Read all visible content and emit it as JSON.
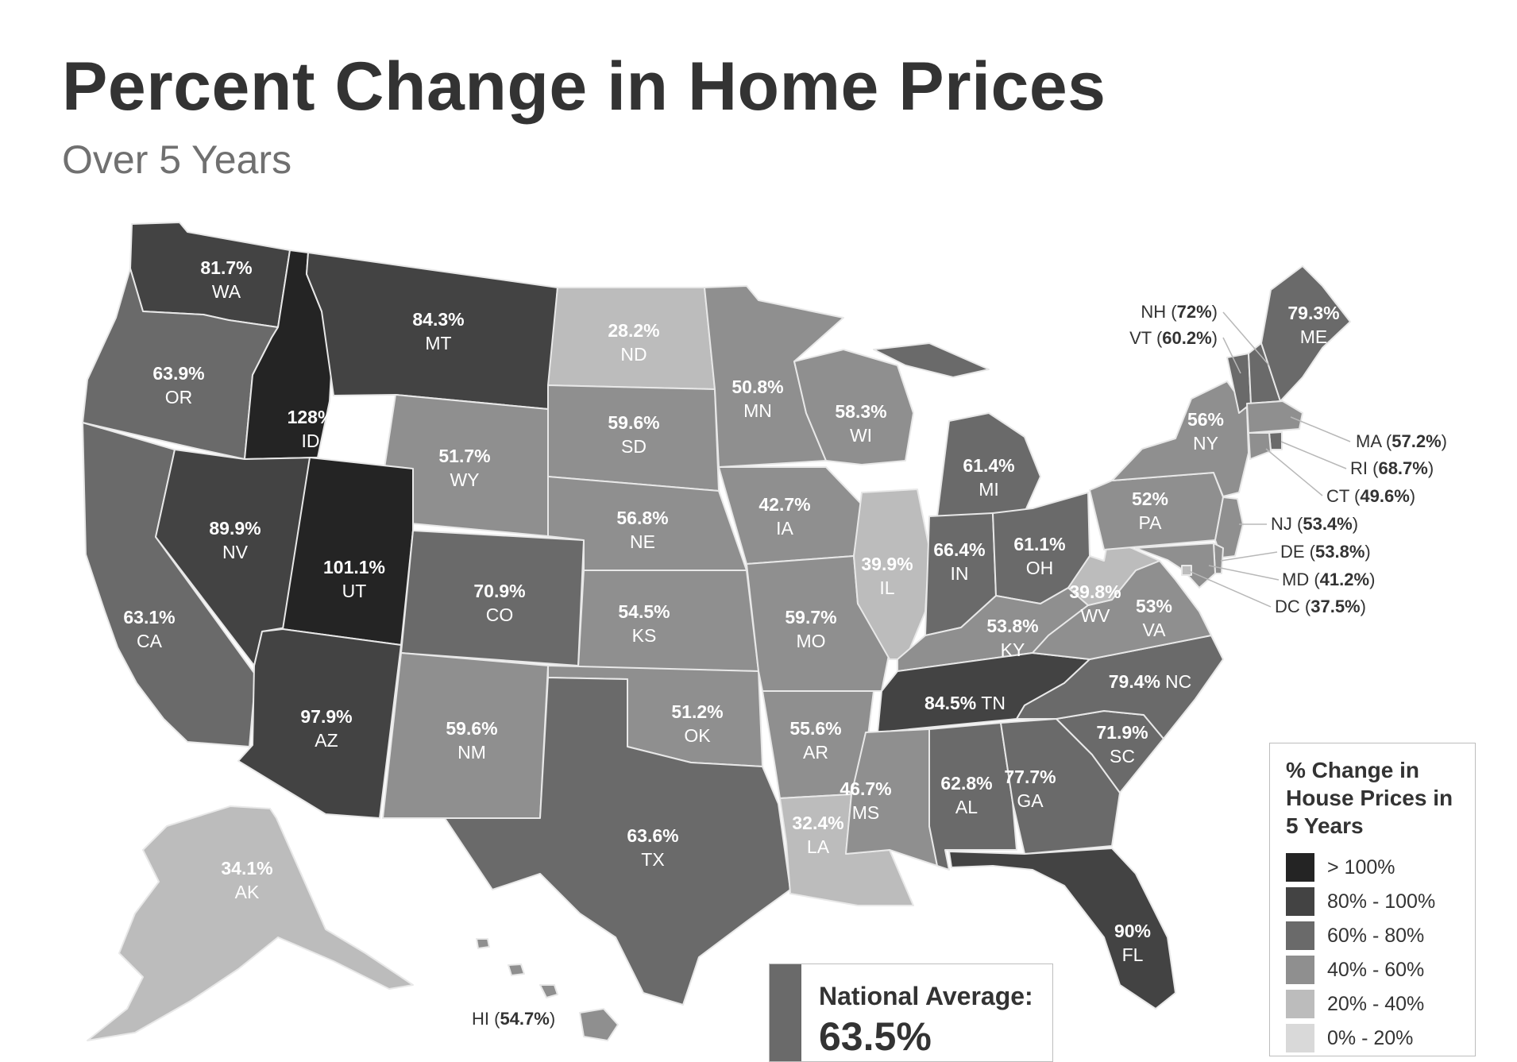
{
  "title": "Percent Change in Home Prices",
  "subtitle": "Over 5 Years",
  "colors": {
    "c100": "#242424",
    "c80": "#434343",
    "c60": "#6a6a6a",
    "c40": "#8f8f8f",
    "c20": "#bcbcbc",
    "c0": "#d9d9d9",
    "dark_text": "#ffffff",
    "light_text": "#ffffff"
  },
  "states": [
    {
      "abbr": "WA",
      "pct": "81.7%",
      "bin": "c80"
    },
    {
      "abbr": "OR",
      "pct": "63.9%",
      "bin": "c60"
    },
    {
      "abbr": "CA",
      "pct": "63.1%",
      "bin": "c60"
    },
    {
      "abbr": "ID",
      "pct": "128%",
      "bin": "c100"
    },
    {
      "abbr": "NV",
      "pct": "89.9%",
      "bin": "c80"
    },
    {
      "abbr": "MT",
      "pct": "84.3%",
      "bin": "c80"
    },
    {
      "abbr": "WY",
      "pct": "51.7%",
      "bin": "c40"
    },
    {
      "abbr": "UT",
      "pct": "101.1%",
      "bin": "c100"
    },
    {
      "abbr": "AZ",
      "pct": "97.9%",
      "bin": "c80"
    },
    {
      "abbr": "CO",
      "pct": "70.9%",
      "bin": "c60"
    },
    {
      "abbr": "NM",
      "pct": "59.6%",
      "bin": "c40"
    },
    {
      "abbr": "ND",
      "pct": "28.2%",
      "bin": "c20"
    },
    {
      "abbr": "SD",
      "pct": "59.6%",
      "bin": "c40"
    },
    {
      "abbr": "NE",
      "pct": "56.8%",
      "bin": "c40"
    },
    {
      "abbr": "KS",
      "pct": "54.5%",
      "bin": "c40"
    },
    {
      "abbr": "OK",
      "pct": "51.2%",
      "bin": "c40"
    },
    {
      "abbr": "TX",
      "pct": "63.6%",
      "bin": "c60"
    },
    {
      "abbr": "MN",
      "pct": "50.8%",
      "bin": "c40"
    },
    {
      "abbr": "IA",
      "pct": "42.7%",
      "bin": "c40"
    },
    {
      "abbr": "MO",
      "pct": "59.7%",
      "bin": "c40"
    },
    {
      "abbr": "AR",
      "pct": "55.6%",
      "bin": "c40"
    },
    {
      "abbr": "LA",
      "pct": "32.4%",
      "bin": "c20"
    },
    {
      "abbr": "WI",
      "pct": "58.3%",
      "bin": "c40"
    },
    {
      "abbr": "IL",
      "pct": "39.9%",
      "bin": "c20"
    },
    {
      "abbr": "MI",
      "pct": "61.4%",
      "bin": "c60"
    },
    {
      "abbr": "IN",
      "pct": "66.4%",
      "bin": "c60"
    },
    {
      "abbr": "OH",
      "pct": "61.1%",
      "bin": "c60"
    },
    {
      "abbr": "KY",
      "pct": "53.8%",
      "bin": "c40"
    },
    {
      "abbr": "TN",
      "pct": "84.5%",
      "bin": "c80"
    },
    {
      "abbr": "MS",
      "pct": "46.7%",
      "bin": "c40"
    },
    {
      "abbr": "AL",
      "pct": "62.8%",
      "bin": "c60"
    },
    {
      "abbr": "GA",
      "pct": "77.7%",
      "bin": "c60"
    },
    {
      "abbr": "FL",
      "pct": "90%",
      "bin": "c80"
    },
    {
      "abbr": "SC",
      "pct": "71.9%",
      "bin": "c60"
    },
    {
      "abbr": "NC",
      "pct": "79.4%",
      "bin": "c60"
    },
    {
      "abbr": "VA",
      "pct": "53%",
      "bin": "c40"
    },
    {
      "abbr": "WV",
      "pct": "39.8%",
      "bin": "c20"
    },
    {
      "abbr": "PA",
      "pct": "52%",
      "bin": "c40"
    },
    {
      "abbr": "NY",
      "pct": "56%",
      "bin": "c40"
    },
    {
      "abbr": "ME",
      "pct": "79.3%",
      "bin": "c60"
    },
    {
      "abbr": "AK",
      "pct": "34.1%",
      "bin": "c20"
    },
    {
      "abbr": "VT",
      "pct": "60.2%",
      "bin": "c60"
    },
    {
      "abbr": "NH",
      "pct": "72%",
      "bin": "c60"
    },
    {
      "abbr": "MA",
      "pct": "57.2%",
      "bin": "c40"
    },
    {
      "abbr": "RI",
      "pct": "68.7%",
      "bin": "c60"
    },
    {
      "abbr": "CT",
      "pct": "49.6%",
      "bin": "c40"
    },
    {
      "abbr": "NJ",
      "pct": "53.4%",
      "bin": "c40"
    },
    {
      "abbr": "DE",
      "pct": "53.8%",
      "bin": "c40"
    },
    {
      "abbr": "MD",
      "pct": "41.2%",
      "bin": "c40"
    },
    {
      "abbr": "DC",
      "pct": "37.5%",
      "bin": "c20"
    },
    {
      "abbr": "HI",
      "pct": "54.7%",
      "bin": "c40"
    }
  ],
  "national": {
    "label": "National Average:",
    "value": "63.5%",
    "bin": "c60"
  },
  "legend": {
    "title": "% Change in House Prices in 5 Years",
    "items": [
      {
        "label": "> 100%",
        "bin": "c100"
      },
      {
        "label": "80% - 100%",
        "bin": "c80"
      },
      {
        "label": "60% - 80%",
        "bin": "c60"
      },
      {
        "label": "40% - 60%",
        "bin": "c40"
      },
      {
        "label": "20% - 40%",
        "bin": "c20"
      },
      {
        "label": "0% - 20%",
        "bin": "c0"
      }
    ]
  }
}
